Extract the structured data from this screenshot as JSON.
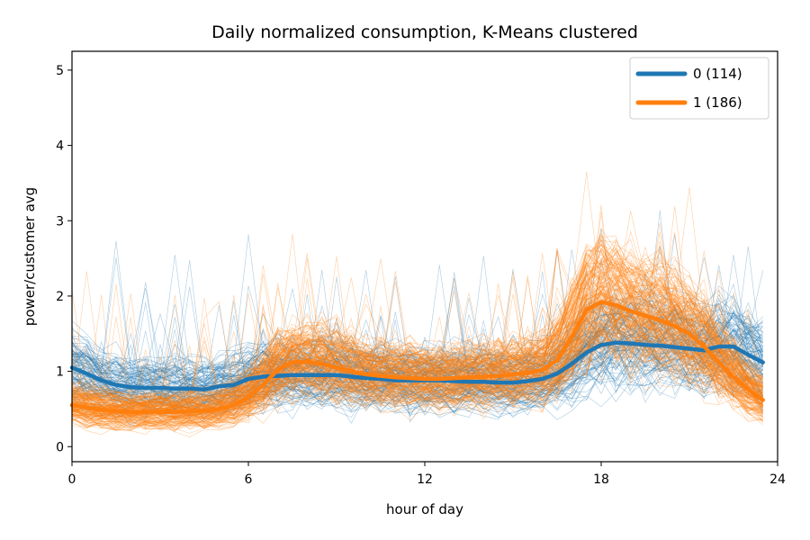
{
  "chart_data": {
    "type": "line",
    "title": "Daily normalized consumption, K-Means clustered",
    "xlabel": "hour of day",
    "ylabel": "power/customer avg",
    "xlim": [
      0,
      24
    ],
    "ylim": [
      -0.2,
      5.25
    ],
    "xticks": [
      0,
      6,
      12,
      18,
      24
    ],
    "yticks": [
      0,
      1,
      2,
      3,
      4,
      5
    ],
    "grid": false,
    "legend_position": "top-right",
    "x": [
      0,
      0.5,
      1,
      1.5,
      2,
      2.5,
      3,
      3.5,
      4,
      4.5,
      5,
      5.5,
      6,
      6.5,
      7,
      7.5,
      8,
      8.5,
      9,
      9.5,
      10,
      10.5,
      11,
      11.5,
      12,
      12.5,
      13,
      13.5,
      14,
      14.5,
      15,
      15.5,
      16,
      16.5,
      17,
      17.5,
      18,
      18.5,
      19,
      19.5,
      20,
      20.5,
      21,
      21.5,
      22,
      22.5,
      23,
      23.5
    ],
    "series": [
      {
        "name": "0 (114)",
        "color": "#1f77b4",
        "members": 114,
        "values": [
          1.05,
          0.97,
          0.88,
          0.82,
          0.79,
          0.78,
          0.78,
          0.77,
          0.77,
          0.76,
          0.8,
          0.82,
          0.9,
          0.93,
          0.94,
          0.95,
          0.95,
          0.95,
          0.95,
          0.93,
          0.91,
          0.9,
          0.88,
          0.88,
          0.88,
          0.88,
          0.87,
          0.86,
          0.86,
          0.85,
          0.85,
          0.87,
          0.9,
          0.97,
          1.1,
          1.25,
          1.35,
          1.38,
          1.37,
          1.35,
          1.34,
          1.32,
          1.3,
          1.28,
          1.33,
          1.33,
          1.22,
          1.12
        ]
      },
      {
        "name": "1 (186)",
        "color": "#ff7f0e",
        "members": 186,
        "values": [
          0.55,
          0.52,
          0.49,
          0.47,
          0.46,
          0.46,
          0.46,
          0.46,
          0.47,
          0.48,
          0.5,
          0.55,
          0.66,
          0.82,
          1.02,
          1.12,
          1.13,
          1.1,
          1.05,
          1.0,
          0.96,
          0.94,
          0.92,
          0.91,
          0.9,
          0.9,
          0.91,
          0.92,
          0.93,
          0.94,
          0.96,
          0.98,
          1.02,
          1.15,
          1.45,
          1.82,
          1.92,
          1.88,
          1.8,
          1.74,
          1.68,
          1.6,
          1.5,
          1.33,
          1.12,
          0.92,
          0.76,
          0.62
        ]
      }
    ]
  }
}
